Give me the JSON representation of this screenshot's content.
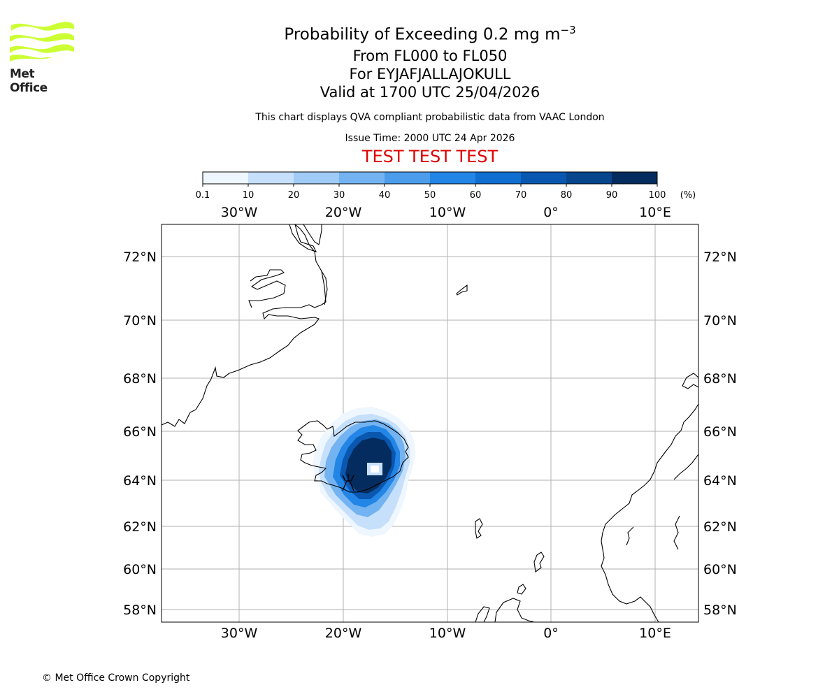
{
  "logo": {
    "text": "Met Office",
    "color": "#ccff33"
  },
  "titles": {
    "main_prefix": "Probability of Exceeding 0.2 mg m",
    "main_superscript": "−3",
    "levels": "From FL000 to FL050",
    "volcano": "For EYJAFJALLAJOKULL",
    "valid": "Valid at 1700 UTC 25/04/2026",
    "description": "This chart displays QVA compliant probabilistic data from VAAC London",
    "issue_time": "Issue Time: 2000 UTC 24 Apr 2026",
    "test_banner": "TEST TEST TEST"
  },
  "colorbar": {
    "ticks": [
      "0.1",
      "10",
      "20",
      "30",
      "40",
      "50",
      "60",
      "70",
      "80",
      "90",
      "100"
    ],
    "unit": "(%)",
    "colors": [
      "#eef6ff",
      "#c6e0fb",
      "#9fcbf6",
      "#73b3f1",
      "#4b9ceb",
      "#2385e6",
      "#106ed0",
      "#0a57b0",
      "#07458d",
      "#042c5e"
    ]
  },
  "map": {
    "lon_labels": [
      "30°W",
      "20°W",
      "10°W",
      "0°",
      "10°E"
    ],
    "lat_labels": [
      "72°N",
      "70°N",
      "68°N",
      "66°N",
      "64°N",
      "62°N",
      "60°N",
      "58°N"
    ],
    "volcano_marker": "volcano-icon"
  },
  "footer": {
    "copyright": "© Met Office Crown Copyright"
  }
}
